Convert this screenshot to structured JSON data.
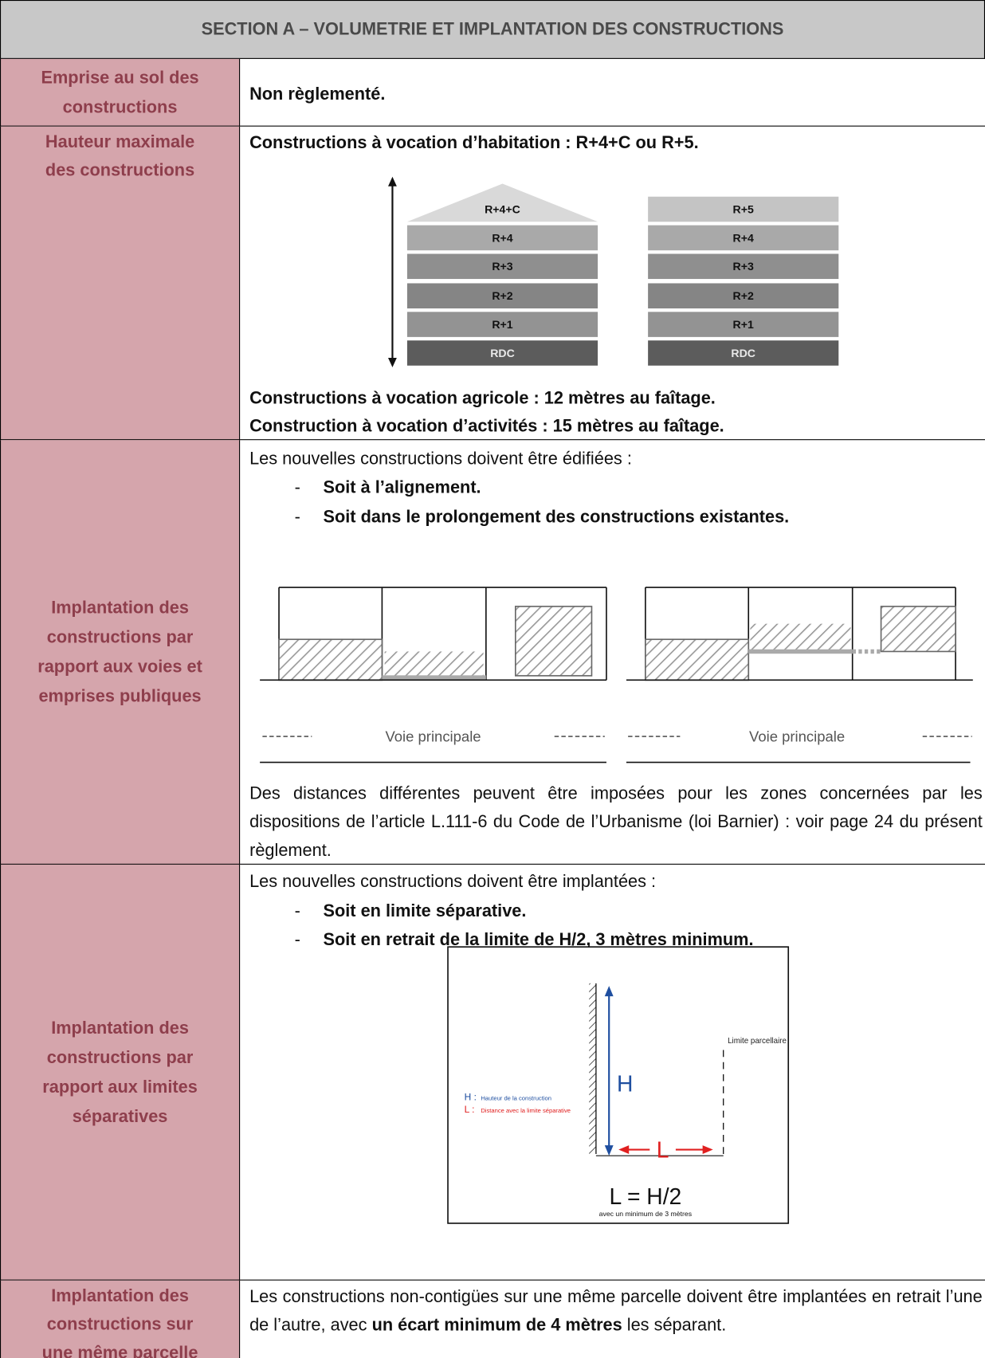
{
  "header": {
    "title": "SECTION A – VOLUMETRIE ET IMPLANTATION DES CONSTRUCTIONS"
  },
  "rows": [
    {
      "label": [
        "Emprise au sol des",
        "constructions"
      ],
      "text": "Non règlementé."
    },
    {
      "label": [
        "Hauteur maximale",
        "des constructions"
      ],
      "lines": [
        "Constructions à vocation d’habitation : R+4+C ou R+5.",
        "Constructions à vocation agricole : 12 mètres au faîtage.",
        "Construction à vocation d’activités : 15 mètres au faîtage."
      ],
      "diagram": {
        "left": [
          "R+4+C",
          "R+4",
          "R+3",
          "R+2",
          "R+1",
          "RDC"
        ],
        "right": [
          "R+5",
          "R+4",
          "R+3",
          "R+2",
          "R+1",
          "RDC"
        ]
      }
    },
    {
      "label": [
        "Implantation des",
        "constructions par",
        "rapport aux voies et",
        "emprises publiques"
      ],
      "intro": "Les nouvelles constructions doivent être édifiées :",
      "bullets": [
        "Soit à l’alignement.",
        "Soit dans le prolongement des constructions existantes."
      ],
      "diagram": {
        "road_labels": [
          "Voie principale",
          "Voie principale"
        ]
      },
      "paragraph": "Des distances différentes peuvent être imposées pour les zones concernées par les dispositions de l’article L.111-6 du Code de l’Urbanisme (loi Barnier) : voir page 24 du présent règlement."
    },
    {
      "label": [
        "Implantation des",
        "constructions par",
        "rapport aux limites",
        "séparatives"
      ],
      "intro": "Les nouvelles constructions doivent être implantées :",
      "bullets": [
        "Soit en limite séparative.",
        "Soit en retrait de la limite de H/2, 3 mètres minimum."
      ],
      "diagram": {
        "limit": "Limite parcellaire",
        "h_symbol": "H",
        "l_symbol": "L",
        "legend": [
          {
            "symbol": "H :",
            "text": "Hauteur de la construction"
          },
          {
            "symbol": "L :",
            "text": "Distance avec la limite séparative"
          }
        ],
        "formula": "L = H/2",
        "formula_note": "avec un minimum de 3 mètres"
      }
    },
    {
      "label": [
        "Implantation des",
        "constructions sur",
        "une même parcelle"
      ],
      "text": [
        "Les constructions non-contigües sur une même parcelle doivent être implantées en retrait l’une de l’autre, avec ",
        "un écart minimum de 4 mètres",
        " les séparant."
      ]
    }
  ]
}
